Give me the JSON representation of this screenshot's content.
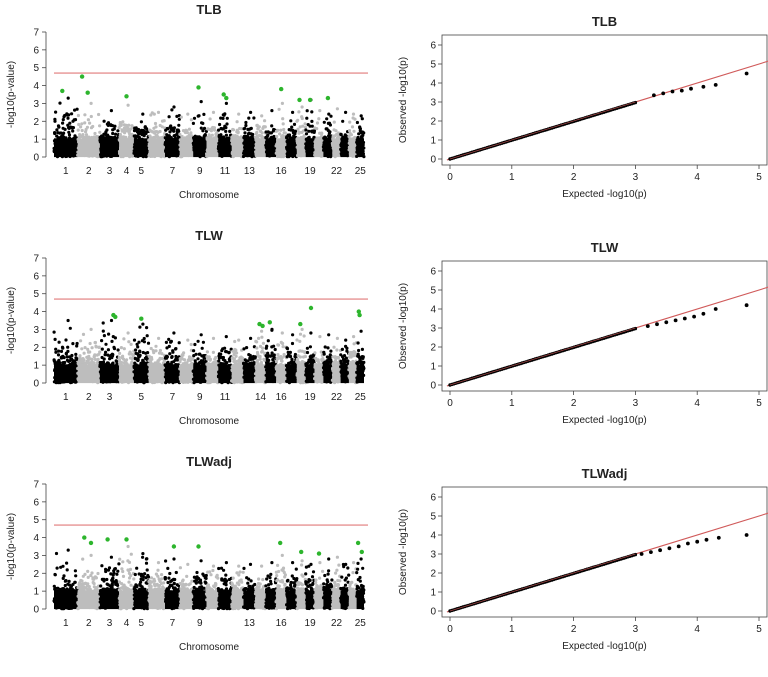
{
  "figure": {
    "colors": {
      "chrom_dark": "#000000",
      "chrom_light": "#bdbdbd",
      "significant": "#2db52d",
      "threshold": "#e07a7a",
      "qq_points": "#000000",
      "qq_line": "#d05a5a"
    }
  },
  "chart_data": [
    {
      "type": "scatter",
      "kind": "manhattan",
      "title": "TLB",
      "xlabel": "Chromosome",
      "ylabel": "-log10(p-value)",
      "ylim": [
        0,
        7
      ],
      "yticks": [
        0,
        1,
        2,
        3,
        4,
        5,
        6,
        7
      ],
      "xticklabels": [
        "1",
        "2",
        "3",
        "4",
        "5",
        "7",
        "9",
        "11",
        "13",
        "16",
        "19",
        "22",
        "25"
      ],
      "threshold": 4.7,
      "chromosomes": [
        {
          "chrom": 1,
          "peak": 3.3
        },
        {
          "chrom": 2,
          "peak": 3.0
        },
        {
          "chrom": 3,
          "peak": 2.6
        },
        {
          "chrom": 4,
          "peak": 2.9
        },
        {
          "chrom": 5,
          "peak": 2.4
        },
        {
          "chrom": 6,
          "peak": 2.5
        },
        {
          "chrom": 7,
          "peak": 2.8
        },
        {
          "chrom": 8,
          "peak": 2.4
        },
        {
          "chrom": 9,
          "peak": 3.1
        },
        {
          "chrom": 10,
          "peak": 2.5
        },
        {
          "chrom": 11,
          "peak": 3.0
        },
        {
          "chrom": 12,
          "peak": 2.4
        },
        {
          "chrom": 13,
          "peak": 2.5
        },
        {
          "chrom": 14,
          "peak": 2.3
        },
        {
          "chrom": 15,
          "peak": 2.6
        },
        {
          "chrom": 16,
          "peak": 3.0
        },
        {
          "chrom": 17,
          "peak": 2.5
        },
        {
          "chrom": 18,
          "peak": 2.8
        },
        {
          "chrom": 19,
          "peak": 3.2
        },
        {
          "chrom": 20,
          "peak": 2.6
        },
        {
          "chrom": 21,
          "peak": 2.4
        },
        {
          "chrom": 22,
          "peak": 2.7
        },
        {
          "chrom": 23,
          "peak": 2.5
        },
        {
          "chrom": 24,
          "peak": 2.4
        },
        {
          "chrom": 25,
          "peak": 2.3
        }
      ],
      "significant_snps": [
        {
          "chrom": 1,
          "pos": 0.35,
          "y": 3.7
        },
        {
          "chrom": 2,
          "pos": 0.2,
          "y": 4.5
        },
        {
          "chrom": 2,
          "pos": 0.45,
          "y": 3.6
        },
        {
          "chrom": 4,
          "pos": 0.5,
          "y": 3.4
        },
        {
          "chrom": 9,
          "pos": 0.4,
          "y": 3.9
        },
        {
          "chrom": 11,
          "pos": 0.4,
          "y": 3.5
        },
        {
          "chrom": 11,
          "pos": 0.6,
          "y": 3.3
        },
        {
          "chrom": 16,
          "pos": 0.5,
          "y": 3.8
        },
        {
          "chrom": 18,
          "pos": 0.3,
          "y": 3.2
        },
        {
          "chrom": 19,
          "pos": 0.5,
          "y": 3.2
        },
        {
          "chrom": 21,
          "pos": 0.5,
          "y": 3.3
        }
      ]
    },
    {
      "type": "scatter",
      "kind": "qq",
      "title": "TLB",
      "xlabel": "Expected  -log10(p)",
      "ylabel": "Observed  -log10(p)",
      "xlim": [
        0,
        5
      ],
      "ylim": [
        0,
        6
      ],
      "xticks": [
        0,
        1,
        2,
        3,
        4,
        5
      ],
      "yticks": [
        0,
        1,
        2,
        3,
        4,
        5,
        6
      ],
      "tail_points": [
        [
          3.3,
          3.35
        ],
        [
          3.45,
          3.45
        ],
        [
          3.6,
          3.55
        ],
        [
          3.75,
          3.6
        ],
        [
          3.9,
          3.7
        ],
        [
          4.1,
          3.8
        ],
        [
          4.3,
          3.9
        ],
        [
          4.8,
          4.5
        ]
      ]
    },
    {
      "type": "scatter",
      "kind": "manhattan",
      "title": "TLW",
      "xlabel": "Chromosome",
      "ylabel": "-log10(p-value)",
      "ylim": [
        0,
        7
      ],
      "yticks": [
        0,
        1,
        2,
        3,
        4,
        5,
        6,
        7
      ],
      "xticklabels": [
        "1",
        "2",
        "3",
        "5",
        "7",
        "9",
        "11",
        "14",
        "16",
        "19",
        "22",
        "25"
      ],
      "threshold": 4.7,
      "chromosomes": [
        {
          "chrom": 1,
          "peak": 3.5
        },
        {
          "chrom": 2,
          "peak": 3.0
        },
        {
          "chrom": 3,
          "peak": 3.5
        },
        {
          "chrom": 4,
          "peak": 2.8
        },
        {
          "chrom": 5,
          "peak": 3.3
        },
        {
          "chrom": 6,
          "peak": 2.5
        },
        {
          "chrom": 7,
          "peak": 2.8
        },
        {
          "chrom": 8,
          "peak": 2.4
        },
        {
          "chrom": 9,
          "peak": 2.7
        },
        {
          "chrom": 10,
          "peak": 2.5
        },
        {
          "chrom": 11,
          "peak": 2.6
        },
        {
          "chrom": 12,
          "peak": 2.4
        },
        {
          "chrom": 13,
          "peak": 2.5
        },
        {
          "chrom": 14,
          "peak": 2.9
        },
        {
          "chrom": 15,
          "peak": 3.0
        },
        {
          "chrom": 16,
          "peak": 2.8
        },
        {
          "chrom": 17,
          "peak": 2.7
        },
        {
          "chrom": 18,
          "peak": 3.0
        },
        {
          "chrom": 19,
          "peak": 2.8
        },
        {
          "chrom": 20,
          "peak": 2.6
        },
        {
          "chrom": 21,
          "peak": 2.7
        },
        {
          "chrom": 22,
          "peak": 2.5
        },
        {
          "chrom": 23,
          "peak": 2.4
        },
        {
          "chrom": 24,
          "peak": 2.6
        },
        {
          "chrom": 25,
          "peak": 2.9
        }
      ],
      "significant_snps": [
        {
          "chrom": 3,
          "pos": 0.7,
          "y": 3.8
        },
        {
          "chrom": 3,
          "pos": 0.8,
          "y": 3.7
        },
        {
          "chrom": 5,
          "pos": 0.5,
          "y": 3.6
        },
        {
          "chrom": 14,
          "pos": 0.4,
          "y": 3.3
        },
        {
          "chrom": 14,
          "pos": 0.7,
          "y": 3.2
        },
        {
          "chrom": 15,
          "pos": 0.4,
          "y": 3.4
        },
        {
          "chrom": 18,
          "pos": 0.4,
          "y": 3.3
        },
        {
          "chrom": 19,
          "pos": 0.6,
          "y": 4.2
        },
        {
          "chrom": 25,
          "pos": 0.3,
          "y": 4.0
        },
        {
          "chrom": 25,
          "pos": 0.4,
          "y": 3.8
        }
      ]
    },
    {
      "type": "scatter",
      "kind": "qq",
      "title": "TLW",
      "xlabel": "Expected  -log10(p)",
      "ylabel": "Observed  -log10(p)",
      "xlim": [
        0,
        5
      ],
      "ylim": [
        0,
        6
      ],
      "xticks": [
        0,
        1,
        2,
        3,
        4,
        5
      ],
      "yticks": [
        0,
        1,
        2,
        3,
        4,
        5,
        6
      ],
      "tail_points": [
        [
          3.2,
          3.1
        ],
        [
          3.35,
          3.2
        ],
        [
          3.5,
          3.3
        ],
        [
          3.65,
          3.4
        ],
        [
          3.8,
          3.5
        ],
        [
          3.95,
          3.6
        ],
        [
          4.1,
          3.75
        ],
        [
          4.3,
          4.0
        ],
        [
          4.8,
          4.2
        ]
      ]
    },
    {
      "type": "scatter",
      "kind": "manhattan",
      "title": "TLWadj",
      "xlabel": "Chromosome",
      "ylabel": "-log10(p-value)",
      "ylim": [
        0,
        7
      ],
      "yticks": [
        0,
        1,
        2,
        3,
        4,
        5,
        6,
        7
      ],
      "xticklabels": [
        "1",
        "2",
        "3",
        "4",
        "5",
        "7",
        "9",
        "13",
        "16",
        "19",
        "22",
        "25"
      ],
      "threshold": 4.7,
      "chromosomes": [
        {
          "chrom": 1,
          "peak": 3.3
        },
        {
          "chrom": 2,
          "peak": 3.0
        },
        {
          "chrom": 3,
          "peak": 2.9
        },
        {
          "chrom": 4,
          "peak": 3.5
        },
        {
          "chrom": 5,
          "peak": 3.1
        },
        {
          "chrom": 6,
          "peak": 2.6
        },
        {
          "chrom": 7,
          "peak": 2.8
        },
        {
          "chrom": 8,
          "peak": 2.5
        },
        {
          "chrom": 9,
          "peak": 2.7
        },
        {
          "chrom": 10,
          "peak": 2.4
        },
        {
          "chrom": 11,
          "peak": 2.6
        },
        {
          "chrom": 12,
          "peak": 2.4
        },
        {
          "chrom": 13,
          "peak": 2.5
        },
        {
          "chrom": 14,
          "peak": 2.4
        },
        {
          "chrom": 15,
          "peak": 2.6
        },
        {
          "chrom": 16,
          "peak": 3.0
        },
        {
          "chrom": 17,
          "peak": 2.6
        },
        {
          "chrom": 18,
          "peak": 2.7
        },
        {
          "chrom": 19,
          "peak": 2.5
        },
        {
          "chrom": 20,
          "peak": 2.6
        },
        {
          "chrom": 21,
          "peak": 2.8
        },
        {
          "chrom": 22,
          "peak": 2.9
        },
        {
          "chrom": 23,
          "peak": 2.5
        },
        {
          "chrom": 24,
          "peak": 2.6
        },
        {
          "chrom": 25,
          "peak": 2.8
        }
      ],
      "significant_snps": [
        {
          "chrom": 2,
          "pos": 0.3,
          "y": 4.0
        },
        {
          "chrom": 2,
          "pos": 0.6,
          "y": 3.7
        },
        {
          "chrom": 3,
          "pos": 0.4,
          "y": 3.9
        },
        {
          "chrom": 4,
          "pos": 0.5,
          "y": 3.9
        },
        {
          "chrom": 7,
          "pos": 0.6,
          "y": 3.5
        },
        {
          "chrom": 9,
          "pos": 0.4,
          "y": 3.5
        },
        {
          "chrom": 16,
          "pos": 0.4,
          "y": 3.7
        },
        {
          "chrom": 18,
          "pos": 0.5,
          "y": 3.2
        },
        {
          "chrom": 20,
          "pos": 0.5,
          "y": 3.1
        },
        {
          "chrom": 25,
          "pos": 0.2,
          "y": 3.7
        },
        {
          "chrom": 25,
          "pos": 0.7,
          "y": 3.2
        }
      ]
    },
    {
      "type": "scatter",
      "kind": "qq",
      "title": "TLWadj",
      "xlabel": "Expected  -log10(p)",
      "ylabel": "Observed  -log10(p)",
      "xlim": [
        0,
        5
      ],
      "ylim": [
        0,
        6
      ],
      "xticks": [
        0,
        1,
        2,
        3,
        4,
        5
      ],
      "yticks": [
        0,
        1,
        2,
        3,
        4,
        5,
        6
      ],
      "tail_points": [
        [
          3.1,
          3.0
        ],
        [
          3.25,
          3.1
        ],
        [
          3.4,
          3.2
        ],
        [
          3.55,
          3.3
        ],
        [
          3.7,
          3.4
        ],
        [
          3.85,
          3.55
        ],
        [
          4.0,
          3.65
        ],
        [
          4.15,
          3.75
        ],
        [
          4.35,
          3.85
        ],
        [
          4.8,
          4.0
        ]
      ]
    }
  ]
}
